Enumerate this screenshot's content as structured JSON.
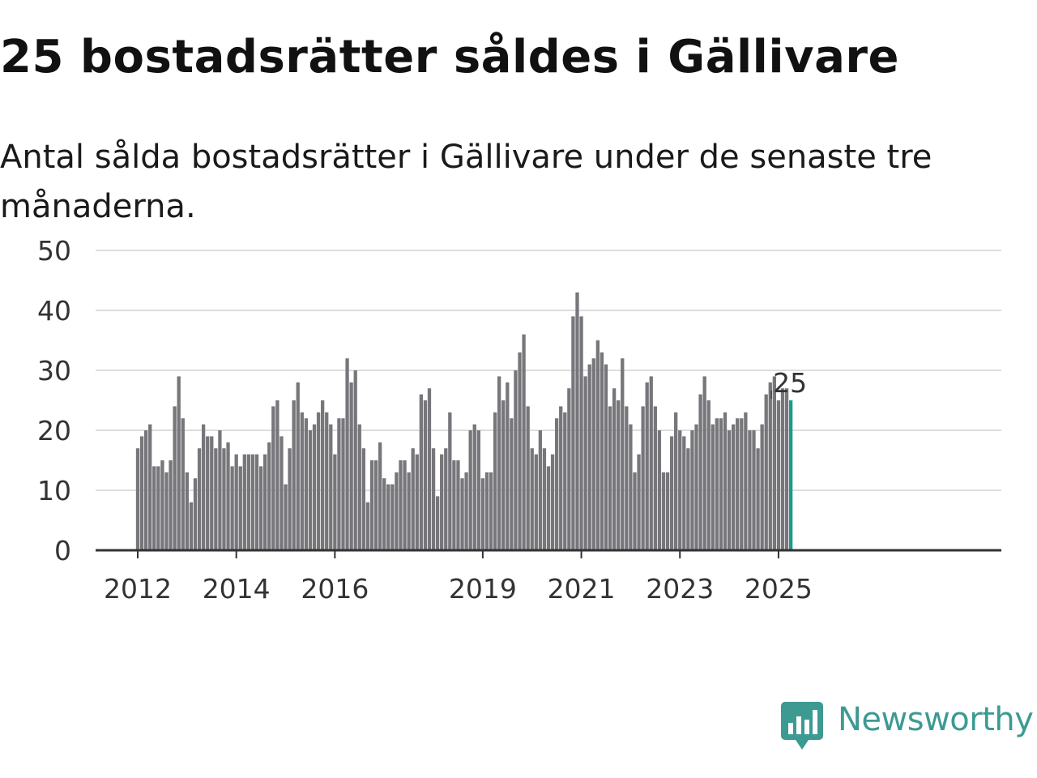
{
  "title": "25 bostadsrätter såldes i Gällivare",
  "subtitle": "Antal sålda bostadsrätter i Gällivare under de senaste tre månaderna.",
  "brand": {
    "name": "Newsworthy",
    "logo_icon": "newsworthy-chart-bubble-icon",
    "color": "#3d9a93"
  },
  "colors": {
    "bar": "#77767b",
    "highlight": "#1b9a8f",
    "grid": "#dddddd",
    "axis": "#333333"
  },
  "chart_data": {
    "type": "bar",
    "title": "25 bostadsrätter såldes i Gällivare",
    "subtitle": "Antal sålda bostadsrätter i Gällivare under de senaste tre månaderna.",
    "xlabel": "",
    "ylabel": "",
    "ylim": [
      0,
      50
    ],
    "yticks": [
      0,
      10,
      20,
      30,
      40,
      50
    ],
    "xticks": [
      "2012",
      "2014",
      "2016",
      "2019",
      "2021",
      "2023",
      "2025"
    ],
    "grid": true,
    "start_month": "2012-01",
    "frequency": "monthly",
    "values": [
      17,
      19,
      20,
      21,
      14,
      14,
      15,
      13,
      15,
      24,
      29,
      22,
      13,
      8,
      12,
      17,
      21,
      19,
      19,
      17,
      20,
      17,
      18,
      14,
      16,
      14,
      16,
      16,
      16,
      16,
      14,
      16,
      18,
      24,
      25,
      19,
      11,
      17,
      25,
      28,
      23,
      22,
      20,
      21,
      23,
      25,
      23,
      21,
      16,
      22,
      22,
      32,
      28,
      30,
      21,
      17,
      8,
      15,
      15,
      18,
      12,
      11,
      11,
      13,
      15,
      15,
      13,
      17,
      16,
      26,
      25,
      27,
      17,
      9,
      16,
      17,
      23,
      15,
      15,
      12,
      13,
      20,
      21,
      20,
      12,
      13,
      13,
      23,
      29,
      25,
      28,
      22,
      30,
      33,
      36,
      24,
      17,
      16,
      20,
      17,
      14,
      16,
      22,
      24,
      23,
      27,
      39,
      43,
      39,
      29,
      31,
      32,
      35,
      33,
      31,
      24,
      27,
      25,
      32,
      24,
      21,
      13,
      16,
      24,
      28,
      29,
      24,
      20,
      13,
      13,
      19,
      23,
      20,
      19,
      17,
      20,
      21,
      26,
      29,
      25,
      21,
      22,
      22,
      23,
      20,
      21,
      22,
      22,
      23,
      20,
      20,
      17,
      21,
      26,
      28,
      29,
      25,
      27,
      27,
      25
    ],
    "highlight_last": true,
    "last_value_label": "25"
  }
}
